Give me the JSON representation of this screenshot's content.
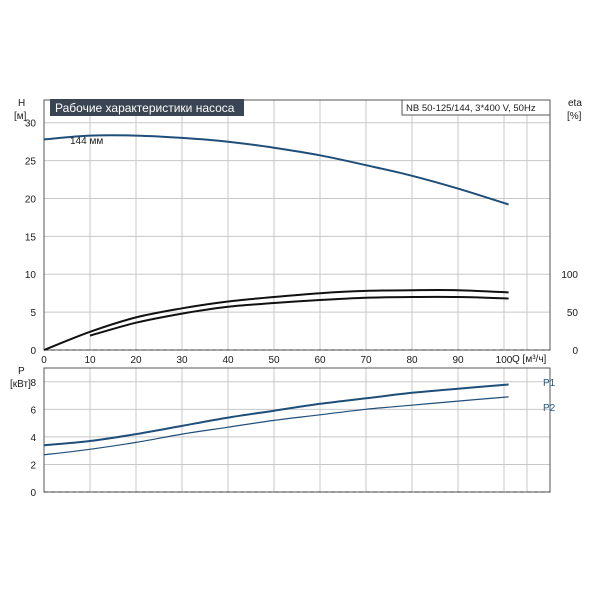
{
  "chart_data": [
    {
      "type": "line",
      "title": "Рабочие характеристики насоса",
      "model": "NB 50-125/144, 3*400 V, 50Hz",
      "xlabel": "Q [м³/ч]",
      "ylabel_name": "H",
      "ylabel_unit": "[м]",
      "y2label_name": "eta",
      "y2label_unit": "[%]",
      "xlim": [
        0,
        110
      ],
      "ylim": [
        0,
        33
      ],
      "y2_ticks": [
        0,
        50,
        100
      ],
      "x_ticks": [
        0,
        10,
        20,
        30,
        40,
        50,
        60,
        70,
        80,
        90,
        100
      ],
      "y_ticks": [
        0,
        5,
        10,
        15,
        20,
        25,
        30
      ],
      "grid": true,
      "annotation": "144 мм",
      "series": [
        {
          "role": "head",
          "color": "#1f4e79",
          "x": [
            0,
            10,
            20,
            30,
            40,
            50,
            60,
            70,
            80,
            90,
            101
          ],
          "y": [
            27.8,
            28.3,
            28.3,
            28.0,
            27.5,
            26.7,
            25.7,
            24.4,
            23.0,
            21.3,
            19.2
          ]
        },
        {
          "role": "eta-1",
          "color": "#111111",
          "x": [
            0,
            10,
            20,
            30,
            40,
            50,
            60,
            70,
            80,
            90,
            101
          ],
          "y": [
            0,
            2.4,
            4.3,
            5.5,
            6.4,
            7.0,
            7.5,
            7.8,
            7.9,
            7.9,
            7.6
          ]
        },
        {
          "role": "eta-2",
          "color": "#111111",
          "x": [
            10,
            20,
            30,
            40,
            50,
            60,
            70,
            80,
            90,
            101
          ],
          "y": [
            1.9,
            3.6,
            4.8,
            5.7,
            6.2,
            6.6,
            6.9,
            7.0,
            7.0,
            6.8
          ]
        }
      ]
    },
    {
      "type": "line",
      "ylabel_name": "P",
      "ylabel_unit": "[кВт]",
      "xlim": [
        0,
        110
      ],
      "ylim": [
        0,
        9
      ],
      "y_ticks": [
        0,
        2,
        4,
        6,
        8
      ],
      "grid": true,
      "series": [
        {
          "name": "P1",
          "color": "#1f4e79",
          "x": [
            0,
            10,
            20,
            30,
            40,
            50,
            60,
            70,
            80,
            90,
            101
          ],
          "y": [
            3.4,
            3.7,
            4.2,
            4.8,
            5.4,
            5.9,
            6.4,
            6.8,
            7.2,
            7.5,
            7.8
          ]
        },
        {
          "name": "P2",
          "color": "#1f4e79",
          "x": [
            0,
            10,
            20,
            30,
            40,
            50,
            60,
            70,
            80,
            90,
            101
          ],
          "y": [
            2.7,
            3.1,
            3.6,
            4.2,
            4.7,
            5.2,
            5.6,
            6.0,
            6.3,
            6.6,
            6.9
          ]
        }
      ]
    }
  ]
}
